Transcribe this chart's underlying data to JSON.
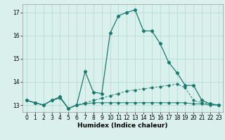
{
  "xlabel": "Humidex (Indice chaleur)",
  "xlim": [
    -0.5,
    23.5
  ],
  "ylim": [
    12.7,
    17.35
  ],
  "yticks": [
    13,
    14,
    15,
    16,
    17
  ],
  "xticks": [
    0,
    1,
    2,
    3,
    4,
    5,
    6,
    7,
    8,
    9,
    10,
    11,
    12,
    13,
    14,
    15,
    16,
    17,
    18,
    19,
    20,
    21,
    22,
    23
  ],
  "bg_color": "#daf0ed",
  "grid_color": "#b0d8d2",
  "line_color": "#1a7a6e",
  "line1_x": [
    0,
    1,
    2,
    3,
    4,
    5,
    6,
    7,
    8,
    9,
    10,
    11,
    12,
    13,
    14,
    15,
    16,
    17,
    18,
    19,
    20,
    21,
    22,
    23
  ],
  "line1_y": [
    13.2,
    13.1,
    13.0,
    13.2,
    13.3,
    12.85,
    13.0,
    13.05,
    13.1,
    13.1,
    13.1,
    13.1,
    13.1,
    13.1,
    13.1,
    13.1,
    13.1,
    13.1,
    13.1,
    13.1,
    13.05,
    13.05,
    13.0,
    13.0
  ],
  "line2_x": [
    0,
    1,
    2,
    3,
    4,
    5,
    6,
    7,
    8,
    9,
    10,
    11,
    12,
    13,
    14,
    15,
    16,
    17,
    18,
    19,
    20,
    21,
    22,
    23
  ],
  "line2_y": [
    13.2,
    13.1,
    13.0,
    13.2,
    13.35,
    12.85,
    13.0,
    13.1,
    13.2,
    13.3,
    13.4,
    13.5,
    13.6,
    13.65,
    13.7,
    13.75,
    13.8,
    13.85,
    13.9,
    13.75,
    13.2,
    13.1,
    13.05,
    13.0
  ],
  "line3_x": [
    0,
    1,
    2,
    3,
    4,
    5,
    6,
    7,
    8,
    9,
    10,
    11,
    12,
    13,
    14,
    15,
    16,
    17,
    18,
    19,
    20,
    21,
    22,
    23
  ],
  "line3_y": [
    13.2,
    13.1,
    13.0,
    13.2,
    13.35,
    12.85,
    13.0,
    14.45,
    13.55,
    13.5,
    16.1,
    16.85,
    17.0,
    17.1,
    16.2,
    16.2,
    15.65,
    14.85,
    14.4,
    13.85,
    13.85,
    13.2,
    13.05,
    13.0
  ]
}
